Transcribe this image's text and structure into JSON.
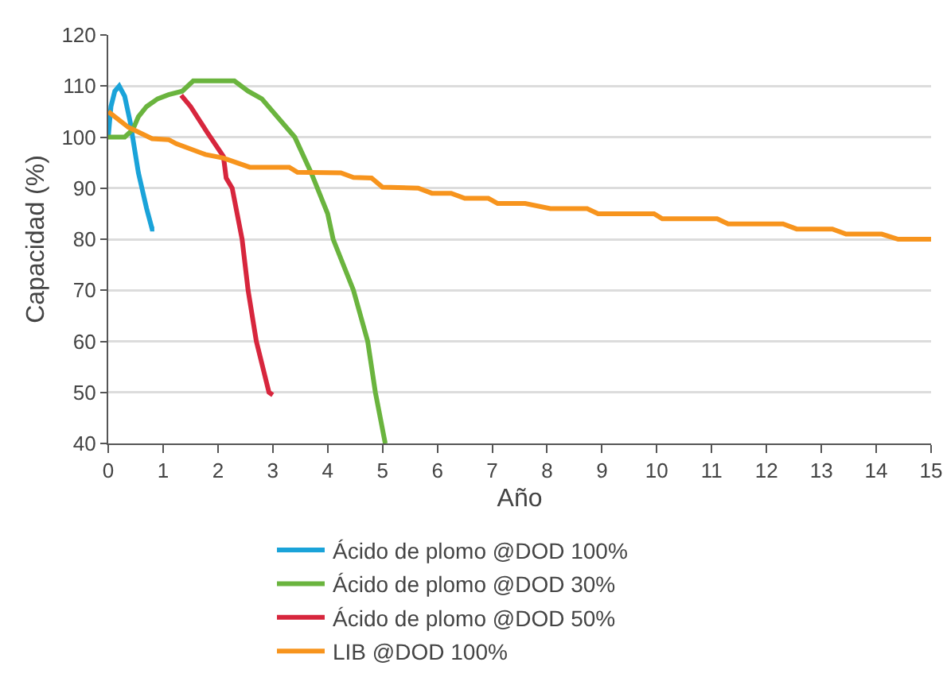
{
  "chart_data": {
    "type": "line",
    "xlabel": "Año",
    "ylabel": "Capacidad (%)",
    "xlim": [
      0,
      15
    ],
    "xticks": [
      0,
      1,
      2,
      3,
      4,
      5,
      6,
      7,
      8,
      9,
      10,
      11,
      12,
      13,
      14,
      15
    ],
    "ylim": [
      40,
      120
    ],
    "yticks": [
      40,
      50,
      60,
      70,
      80,
      90,
      100,
      110,
      120
    ],
    "grid": "y",
    "legend": "bottom",
    "marker": "none",
    "line_style": "solid",
    "series": [
      {
        "name": "Ácido de plomo @DOD 100%",
        "color": "#1aa3d9",
        "x": [
          0,
          0.05,
          0.12,
          0.2,
          0.3,
          0.4,
          0.55,
          0.7,
          0.8,
          0.84
        ],
        "values": [
          100,
          106,
          109,
          110,
          108,
          103,
          93,
          86,
          82,
          82
        ]
      },
      {
        "name": "Ácido de plomo @DOD 30%",
        "color": "#6ab43e",
        "x": [
          0,
          0.3,
          0.45,
          0.55,
          0.7,
          0.9,
          1.1,
          1.35,
          1.55,
          2.3,
          2.55,
          2.8,
          3.0,
          3.4,
          3.7,
          4.0,
          4.1,
          4.47,
          4.73,
          4.87,
          5.05
        ],
        "values": [
          100,
          100,
          101.5,
          104,
          106,
          107.5,
          108.3,
          109,
          111,
          111,
          109,
          107.5,
          105,
          100,
          93,
          85,
          80,
          70,
          60,
          50,
          40
        ]
      },
      {
        "name": "Ácido de plomo @DOD 50%",
        "color": "#d7263d",
        "x": [
          1.33,
          1.5,
          1.8,
          2.1,
          2.15,
          2.26,
          2.44,
          2.55,
          2.7,
          2.93,
          3.0
        ],
        "values": [
          108.2,
          106,
          101,
          96.2,
          92,
          90,
          80,
          70,
          60,
          50,
          49.5
        ]
      },
      {
        "name": "LIB @DOD 100%",
        "color": "#f7941d",
        "x": [
          0,
          0.37,
          0.8,
          1.1,
          1.24,
          1.77,
          2.1,
          2.58,
          3.3,
          3.45,
          4.24,
          4.47,
          4.8,
          5.0,
          5.65,
          5.9,
          6.25,
          6.5,
          6.93,
          7.1,
          7.6,
          8.06,
          8.73,
          8.93,
          9.95,
          10.1,
          11.1,
          11.3,
          12.3,
          12.55,
          13.2,
          13.45,
          14.1,
          14.4,
          15
        ],
        "values": [
          105,
          101.9,
          99.7,
          99.5,
          98.7,
          96.6,
          95.9,
          94.1,
          94.1,
          93.1,
          93,
          92.1,
          92,
          90.2,
          90,
          89,
          89,
          88,
          88,
          87,
          87,
          86,
          86,
          85,
          85,
          84,
          84,
          83,
          83,
          82,
          82,
          81,
          81,
          80,
          80
        ]
      }
    ]
  }
}
